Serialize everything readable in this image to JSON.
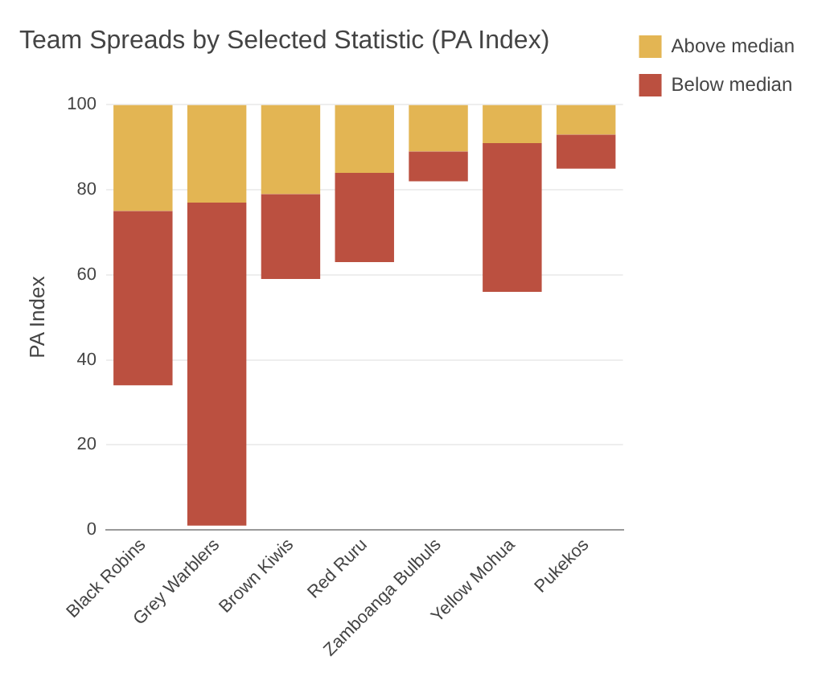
{
  "chart_data": {
    "type": "bar",
    "title": "Team Spreads by Selected Statistic (PA Index)",
    "ylabel": "PA Index",
    "categories": [
      "Black Robins",
      "Grey Warblers",
      "Brown Kiwis",
      "Red Ruru",
      "Zamboanga Bulbuls",
      "Yellow Mohua",
      "Pukekos"
    ],
    "series": [
      {
        "name": "Below median",
        "color": "#bb5040",
        "base": [
          34,
          1,
          59,
          63,
          82,
          56,
          85
        ],
        "values": [
          41,
          76,
          20,
          21,
          7,
          35,
          8
        ]
      },
      {
        "name": "Above median",
        "color": "#e3b553",
        "base": [
          75,
          77,
          79,
          84,
          89,
          91,
          93
        ],
        "values": [
          25,
          23,
          21,
          16,
          11,
          9,
          7
        ]
      }
    ],
    "ylim": [
      0,
      100
    ],
    "yticks": [
      0,
      20,
      40,
      60,
      80,
      100
    ],
    "grid": "y",
    "legend": "top right"
  }
}
